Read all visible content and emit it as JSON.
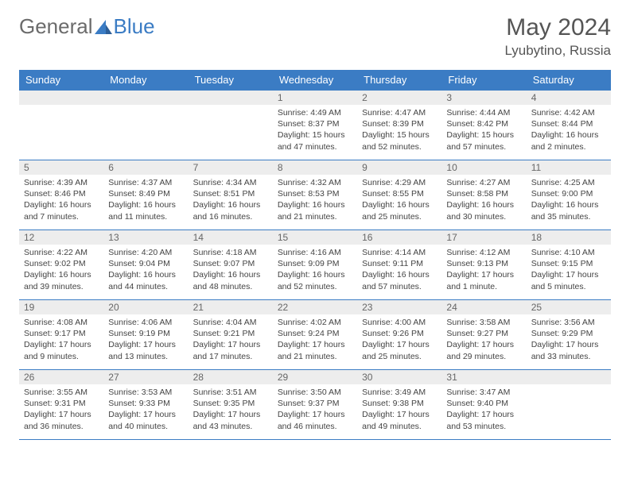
{
  "logo": {
    "part1": "General",
    "part2": "Blue"
  },
  "title": "May 2024",
  "location": "Lyubytino, Russia",
  "colors": {
    "header_bg": "#3b7cc4",
    "header_text": "#ffffff",
    "daynum_bg": "#ededed",
    "daynum_text": "#666666",
    "body_text": "#444444",
    "border": "#3b7cc4",
    "logo_gray": "#6b6b6b",
    "logo_blue": "#3b7cc4"
  },
  "day_headers": [
    "Sunday",
    "Monday",
    "Tuesday",
    "Wednesday",
    "Thursday",
    "Friday",
    "Saturday"
  ],
  "weeks": [
    [
      {
        "day": "",
        "sunrise": "",
        "sunset": "",
        "daylight": ""
      },
      {
        "day": "",
        "sunrise": "",
        "sunset": "",
        "daylight": ""
      },
      {
        "day": "",
        "sunrise": "",
        "sunset": "",
        "daylight": ""
      },
      {
        "day": "1",
        "sunrise": "Sunrise: 4:49 AM",
        "sunset": "Sunset: 8:37 PM",
        "daylight": "Daylight: 15 hours and 47 minutes."
      },
      {
        "day": "2",
        "sunrise": "Sunrise: 4:47 AM",
        "sunset": "Sunset: 8:39 PM",
        "daylight": "Daylight: 15 hours and 52 minutes."
      },
      {
        "day": "3",
        "sunrise": "Sunrise: 4:44 AM",
        "sunset": "Sunset: 8:42 PM",
        "daylight": "Daylight: 15 hours and 57 minutes."
      },
      {
        "day": "4",
        "sunrise": "Sunrise: 4:42 AM",
        "sunset": "Sunset: 8:44 PM",
        "daylight": "Daylight: 16 hours and 2 minutes."
      }
    ],
    [
      {
        "day": "5",
        "sunrise": "Sunrise: 4:39 AM",
        "sunset": "Sunset: 8:46 PM",
        "daylight": "Daylight: 16 hours and 7 minutes."
      },
      {
        "day": "6",
        "sunrise": "Sunrise: 4:37 AM",
        "sunset": "Sunset: 8:49 PM",
        "daylight": "Daylight: 16 hours and 11 minutes."
      },
      {
        "day": "7",
        "sunrise": "Sunrise: 4:34 AM",
        "sunset": "Sunset: 8:51 PM",
        "daylight": "Daylight: 16 hours and 16 minutes."
      },
      {
        "day": "8",
        "sunrise": "Sunrise: 4:32 AM",
        "sunset": "Sunset: 8:53 PM",
        "daylight": "Daylight: 16 hours and 21 minutes."
      },
      {
        "day": "9",
        "sunrise": "Sunrise: 4:29 AM",
        "sunset": "Sunset: 8:55 PM",
        "daylight": "Daylight: 16 hours and 25 minutes."
      },
      {
        "day": "10",
        "sunrise": "Sunrise: 4:27 AM",
        "sunset": "Sunset: 8:58 PM",
        "daylight": "Daylight: 16 hours and 30 minutes."
      },
      {
        "day": "11",
        "sunrise": "Sunrise: 4:25 AM",
        "sunset": "Sunset: 9:00 PM",
        "daylight": "Daylight: 16 hours and 35 minutes."
      }
    ],
    [
      {
        "day": "12",
        "sunrise": "Sunrise: 4:22 AM",
        "sunset": "Sunset: 9:02 PM",
        "daylight": "Daylight: 16 hours and 39 minutes."
      },
      {
        "day": "13",
        "sunrise": "Sunrise: 4:20 AM",
        "sunset": "Sunset: 9:04 PM",
        "daylight": "Daylight: 16 hours and 44 minutes."
      },
      {
        "day": "14",
        "sunrise": "Sunrise: 4:18 AM",
        "sunset": "Sunset: 9:07 PM",
        "daylight": "Daylight: 16 hours and 48 minutes."
      },
      {
        "day": "15",
        "sunrise": "Sunrise: 4:16 AM",
        "sunset": "Sunset: 9:09 PM",
        "daylight": "Daylight: 16 hours and 52 minutes."
      },
      {
        "day": "16",
        "sunrise": "Sunrise: 4:14 AM",
        "sunset": "Sunset: 9:11 PM",
        "daylight": "Daylight: 16 hours and 57 minutes."
      },
      {
        "day": "17",
        "sunrise": "Sunrise: 4:12 AM",
        "sunset": "Sunset: 9:13 PM",
        "daylight": "Daylight: 17 hours and 1 minute."
      },
      {
        "day": "18",
        "sunrise": "Sunrise: 4:10 AM",
        "sunset": "Sunset: 9:15 PM",
        "daylight": "Daylight: 17 hours and 5 minutes."
      }
    ],
    [
      {
        "day": "19",
        "sunrise": "Sunrise: 4:08 AM",
        "sunset": "Sunset: 9:17 PM",
        "daylight": "Daylight: 17 hours and 9 minutes."
      },
      {
        "day": "20",
        "sunrise": "Sunrise: 4:06 AM",
        "sunset": "Sunset: 9:19 PM",
        "daylight": "Daylight: 17 hours and 13 minutes."
      },
      {
        "day": "21",
        "sunrise": "Sunrise: 4:04 AM",
        "sunset": "Sunset: 9:21 PM",
        "daylight": "Daylight: 17 hours and 17 minutes."
      },
      {
        "day": "22",
        "sunrise": "Sunrise: 4:02 AM",
        "sunset": "Sunset: 9:24 PM",
        "daylight": "Daylight: 17 hours and 21 minutes."
      },
      {
        "day": "23",
        "sunrise": "Sunrise: 4:00 AM",
        "sunset": "Sunset: 9:26 PM",
        "daylight": "Daylight: 17 hours and 25 minutes."
      },
      {
        "day": "24",
        "sunrise": "Sunrise: 3:58 AM",
        "sunset": "Sunset: 9:27 PM",
        "daylight": "Daylight: 17 hours and 29 minutes."
      },
      {
        "day": "25",
        "sunrise": "Sunrise: 3:56 AM",
        "sunset": "Sunset: 9:29 PM",
        "daylight": "Daylight: 17 hours and 33 minutes."
      }
    ],
    [
      {
        "day": "26",
        "sunrise": "Sunrise: 3:55 AM",
        "sunset": "Sunset: 9:31 PM",
        "daylight": "Daylight: 17 hours and 36 minutes."
      },
      {
        "day": "27",
        "sunrise": "Sunrise: 3:53 AM",
        "sunset": "Sunset: 9:33 PM",
        "daylight": "Daylight: 17 hours and 40 minutes."
      },
      {
        "day": "28",
        "sunrise": "Sunrise: 3:51 AM",
        "sunset": "Sunset: 9:35 PM",
        "daylight": "Daylight: 17 hours and 43 minutes."
      },
      {
        "day": "29",
        "sunrise": "Sunrise: 3:50 AM",
        "sunset": "Sunset: 9:37 PM",
        "daylight": "Daylight: 17 hours and 46 minutes."
      },
      {
        "day": "30",
        "sunrise": "Sunrise: 3:49 AM",
        "sunset": "Sunset: 9:38 PM",
        "daylight": "Daylight: 17 hours and 49 minutes."
      },
      {
        "day": "31",
        "sunrise": "Sunrise: 3:47 AM",
        "sunset": "Sunset: 9:40 PM",
        "daylight": "Daylight: 17 hours and 53 minutes."
      },
      {
        "day": "",
        "sunrise": "",
        "sunset": "",
        "daylight": ""
      }
    ]
  ]
}
